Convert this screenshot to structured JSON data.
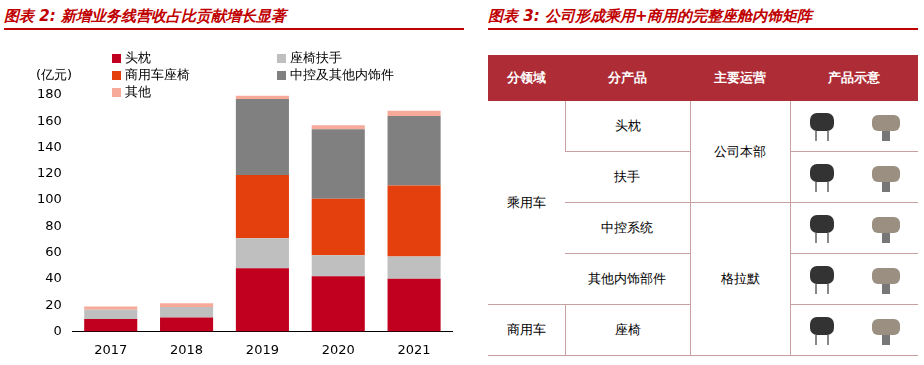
{
  "chart_data": {
    "type": "bar",
    "title": "图表 2: 新增业务线营收占比贡献增长显著",
    "y_label": "(亿元)",
    "categories": [
      "2017",
      "2018",
      "2019",
      "2020",
      "2021"
    ],
    "series": [
      {
        "name": "头枕",
        "color": "#c0001e",
        "values": [
          9.5,
          10.5,
          48,
          42,
          40
        ]
      },
      {
        "name": "座椅扶手",
        "color": "#bfbfbf",
        "values": [
          7,
          8,
          23,
          16,
          17
        ]
      },
      {
        "name": "商用车座椅",
        "color": "#e3400e",
        "values": [
          0,
          0,
          48,
          43,
          54
        ]
      },
      {
        "name": "中控及其他内饰件",
        "color": "#808080",
        "values": [
          0,
          0,
          58,
          53,
          53
        ]
      },
      {
        "name": "其他",
        "color": "#f7aa9a",
        "values": [
          2.5,
          3,
          2.5,
          3,
          4
        ]
      }
    ],
    "ylim": [
      0,
      180
    ],
    "yticks": [
      0,
      20,
      40,
      60,
      80,
      100,
      120,
      140,
      160,
      180
    ],
    "stacked": true,
    "grid": false,
    "legend": "top-left"
  },
  "table": {
    "title": "图表 3: 公司形成乘用+商用的完整座舱内饰矩阵",
    "header": [
      "分领域",
      "分产品",
      "主要运营",
      "产品示意"
    ],
    "domains": [
      {
        "label": "乘用车",
        "products": [
          "头枕",
          "扶手",
          "中控系统",
          "其他内饰部件"
        ]
      },
      {
        "label": "商用车",
        "products": [
          "座椅"
        ]
      }
    ],
    "operators": [
      {
        "label": "公司本部",
        "products": [
          "头枕",
          "扶手"
        ]
      },
      {
        "label": "格拉默",
        "products": [
          "中控系统",
          "其他内饰部件",
          "座椅"
        ]
      }
    ]
  }
}
